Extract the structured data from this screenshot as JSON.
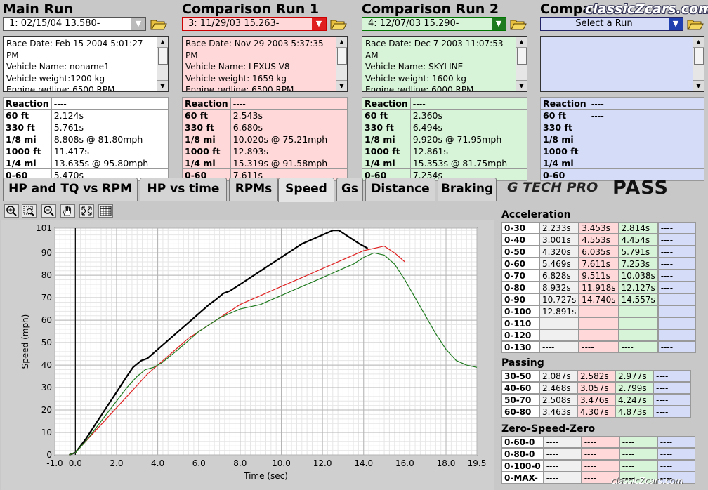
{
  "runs": [
    {
      "heading": "Main Run",
      "selector": "1:  02/15/04 13.580-",
      "info": [
        "Race Date: Feb 15 2004  5:01:27",
        "PM",
        "Vehicle Name: noname1",
        "Vehicle weight:1200 kg",
        "Engine redline: 6500 RPM"
      ],
      "stats": [
        [
          "Reaction",
          "----"
        ],
        [
          "60 ft",
          "2.124s"
        ],
        [
          "330 ft",
          "5.761s"
        ],
        [
          "1/8 mi",
          "8.808s @ 81.80mph"
        ],
        [
          "1000 ft",
          "11.417s"
        ],
        [
          "1/4 mi",
          "13.635s @ 95.80mph"
        ],
        [
          "0-60",
          "5.470s"
        ]
      ]
    },
    {
      "heading": "Comparison Run 1",
      "selector": "3:  11/29/03 15.263-",
      "info": [
        "Race Date: Nov 29 2003  5:37:35",
        "PM",
        "Vehicle Name: LEXUS V8",
        "Vehicle weight:  1659 kg",
        "Engine redline: 6500 RPM"
      ],
      "stats": [
        [
          "Reaction",
          "----"
        ],
        [
          "60 ft",
          "2.543s"
        ],
        [
          "330 ft",
          "6.680s"
        ],
        [
          "1/8 mi",
          "10.020s @ 75.21mph"
        ],
        [
          "1000 ft",
          "12.893s"
        ],
        [
          "1/4 mi",
          "15.319s @ 91.58mph"
        ],
        [
          "0-60",
          "7.611s"
        ]
      ]
    },
    {
      "heading": "Comparison Run 2",
      "selector": "4:  12/07/03 15.290-",
      "info": [
        "Race Date: Dec 7 2003  11:07:53",
        "AM",
        "Vehicle Name:  SKYLINE",
        "Vehicle weight:  1600 kg",
        "Engine redline: 6000 RPM"
      ],
      "stats": [
        [
          "Reaction",
          "----"
        ],
        [
          "60 ft",
          "2.360s"
        ],
        [
          "330 ft",
          "6.494s"
        ],
        [
          "1/8 mi",
          "9.920s @ 71.95mph"
        ],
        [
          "1000 ft",
          "12.861s"
        ],
        [
          "1/4 mi",
          "15.353s @ 81.75mph"
        ],
        [
          "0-60",
          "7.254s"
        ]
      ]
    },
    {
      "heading": "Compa",
      "selector": "Select a Run",
      "info": [],
      "stats": [
        [
          "Reaction",
          "----"
        ],
        [
          "60 ft",
          "----"
        ],
        [
          "330 ft",
          "----"
        ],
        [
          "1/8 mi",
          "----"
        ],
        [
          "1000 ft",
          "----"
        ],
        [
          "1/4 mi",
          "----"
        ],
        [
          "0-60",
          "----"
        ]
      ]
    }
  ],
  "watermark_top": "classicZcars.com",
  "watermark_bottom": "classicZcars.com",
  "tabs": [
    "HP and TQ vs RPM",
    "HP vs time",
    "RPMs",
    "Speed",
    "Gs",
    "Distance",
    "Braking"
  ],
  "active_tab": "Speed",
  "logo": {
    "brand": "G TECH PRO",
    "pass": "PASS"
  },
  "toolbar": [
    "zoom-in-icon",
    "zoom-box-icon",
    "zoom-out-icon",
    "hand-pan-icon",
    "fit-icon",
    "grid-icon"
  ],
  "acceleration": {
    "title": "Acceleration",
    "rows": [
      [
        "0-30",
        "2.233s",
        "3.453s",
        "2.814s",
        "----"
      ],
      [
        "0-40",
        "3.001s",
        "4.553s",
        "4.454s",
        "----"
      ],
      [
        "0-50",
        "4.320s",
        "6.035s",
        "5.791s",
        "----"
      ],
      [
        "0-60",
        "5.469s",
        "7.611s",
        "7.253s",
        "----"
      ],
      [
        "0-70",
        "6.828s",
        "9.511s",
        "10.038s",
        "----"
      ],
      [
        "0-80",
        "8.932s",
        "11.918s",
        "12.127s",
        "----"
      ],
      [
        "0-90",
        "10.727s",
        "14.740s",
        "14.557s",
        "----"
      ],
      [
        "0-100",
        "12.891s",
        "----",
        "----",
        "----"
      ],
      [
        "0-110",
        "----",
        "----",
        "----",
        "----"
      ],
      [
        "0-120",
        "----",
        "----",
        "----",
        "----"
      ],
      [
        "0-130",
        "----",
        "----",
        "----",
        "----"
      ]
    ]
  },
  "passing": {
    "title": "Passing",
    "rows": [
      [
        "30-50",
        "2.087s",
        "2.582s",
        "2.977s",
        "----"
      ],
      [
        "40-60",
        "2.468s",
        "3.057s",
        "2.799s",
        "----"
      ],
      [
        "50-70",
        "2.508s",
        "3.476s",
        "4.247s",
        "----"
      ],
      [
        "60-80",
        "3.463s",
        "4.307s",
        "4.873s",
        "----"
      ]
    ]
  },
  "zero_speed_zero": {
    "title": "Zero-Speed-Zero",
    "rows": [
      [
        "0-60-0",
        "----",
        "----",
        "----",
        "----"
      ],
      [
        "0-80-0",
        "----",
        "----",
        "----",
        "----"
      ],
      [
        "0-100-0",
        "----",
        "----",
        "----",
        "----"
      ],
      [
        "0-MAX-",
        "----",
        "----",
        "----",
        "----"
      ]
    ]
  },
  "colors": {
    "main": "#000000",
    "comp1": "#e02020",
    "comp2": "#1e7a1e",
    "comp3": "#2040d0"
  },
  "chart_data": {
    "type": "line",
    "xlabel": "Time (sec)",
    "ylabel": "Speed (mph)",
    "xlim": [
      -1.0,
      19.5
    ],
    "ylim": [
      0,
      101
    ],
    "xticks": [
      -1.0,
      0.0,
      2.0,
      4.0,
      6.0,
      8.0,
      10.0,
      12.0,
      14.0,
      16.0,
      18.0,
      19.5
    ],
    "xtick_labels": [
      "-1.0",
      "0.0",
      "2.0",
      "4.0",
      "6.0",
      "8.0",
      "10.0",
      "12.0",
      "14.0",
      "16.0",
      "18.0",
      "19.5"
    ],
    "yticks": [
      0,
      10,
      20,
      30,
      40,
      50,
      60,
      70,
      80,
      90,
      101
    ],
    "ytick_labels": [
      "0",
      "10",
      "20",
      "30",
      "40",
      "50",
      "60",
      "70",
      "80",
      "90",
      "101"
    ],
    "grid": true,
    "series": [
      {
        "color": "#000000",
        "x": [
          -0.3,
          0,
          0.5,
          1,
          1.5,
          2,
          2.5,
          2.8,
          3.2,
          3.5,
          4,
          4.5,
          5,
          5.5,
          6,
          6.5,
          6.8,
          7.2,
          7.5,
          8,
          8.5,
          9,
          9.5,
          10,
          10.5,
          11,
          11.5,
          12,
          12.5,
          12.8,
          13.3,
          13.8,
          14.2
        ],
        "y": [
          0,
          1,
          7,
          14,
          21,
          28,
          35,
          39,
          42,
          43,
          47,
          51,
          55,
          59,
          63,
          67,
          69,
          72,
          73,
          76,
          79,
          82,
          85,
          88,
          91,
          94,
          96,
          98,
          100,
          100,
          97,
          94,
          92
        ]
      },
      {
        "color": "#e02020",
        "x": [
          -0.3,
          0,
          0.5,
          1,
          1.5,
          2,
          2.5,
          3,
          3.5,
          4,
          4.5,
          5,
          5.5,
          6,
          6.5,
          7,
          7.5,
          8,
          8.5,
          9,
          9.5,
          10,
          10.5,
          11,
          11.5,
          12,
          12.5,
          13,
          13.5,
          14,
          14.5,
          15,
          15.5,
          16
        ],
        "y": [
          0,
          1,
          6,
          11,
          16,
          21,
          26,
          31,
          36,
          40,
          44,
          48,
          52,
          55,
          58,
          61,
          64,
          67,
          69,
          71,
          73,
          75,
          77,
          79,
          81,
          83,
          85,
          87,
          89,
          91,
          92,
          93,
          90,
          86
        ]
      },
      {
        "color": "#1e7a1e",
        "x": [
          -0.3,
          0,
          0.5,
          1,
          1.5,
          2,
          2.5,
          3,
          3.4,
          3.8,
          4.2,
          4.6,
          5,
          5.5,
          6,
          6.5,
          7,
          7.5,
          8,
          8.5,
          9,
          9.5,
          10,
          10.5,
          11,
          11.5,
          12,
          12.5,
          13,
          13.5,
          14,
          14.5,
          15,
          15.5,
          16,
          16.5,
          17,
          17.5,
          18,
          18.5,
          19,
          19.5
        ],
        "y": [
          0,
          1,
          6,
          12,
          18,
          24,
          30,
          35,
          38,
          39,
          41,
          44,
          47,
          51,
          55,
          58,
          61,
          63,
          65,
          66,
          67,
          69,
          71,
          73,
          75,
          77,
          79,
          81,
          83,
          85,
          88,
          90,
          89,
          85,
          78,
          70,
          62,
          54,
          47,
          42,
          40,
          39
        ]
      }
    ]
  }
}
